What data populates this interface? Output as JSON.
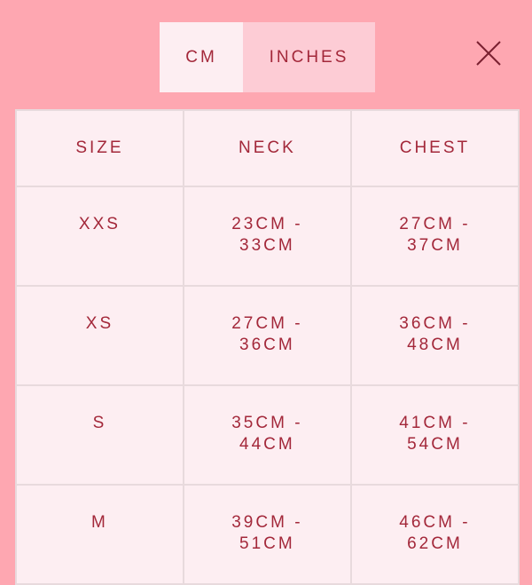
{
  "units": {
    "options": [
      "CM",
      "INCHES"
    ],
    "selected": "CM"
  },
  "close_icon": "close-icon",
  "colors": {
    "background": "#fea7b1",
    "cell": "#fdeef2",
    "text": "#a3283a",
    "inactive_tab": "#fdccd5"
  },
  "table": {
    "headers": [
      "SIZE",
      "NECK",
      "CHEST"
    ],
    "rows": [
      {
        "size": "XXS",
        "neck": [
          "23CM -",
          "33CM"
        ],
        "chest": [
          "27CM -",
          "37CM"
        ]
      },
      {
        "size": "XS",
        "neck": [
          "27CM -",
          "36CM"
        ],
        "chest": [
          "36CM -",
          "48CM"
        ]
      },
      {
        "size": "S",
        "neck": [
          "35CM -",
          "44CM"
        ],
        "chest": [
          "41CM -",
          "54CM"
        ]
      },
      {
        "size": "M",
        "neck": [
          "39CM -",
          "51CM"
        ],
        "chest": [
          "46CM -",
          "62CM"
        ]
      }
    ]
  }
}
